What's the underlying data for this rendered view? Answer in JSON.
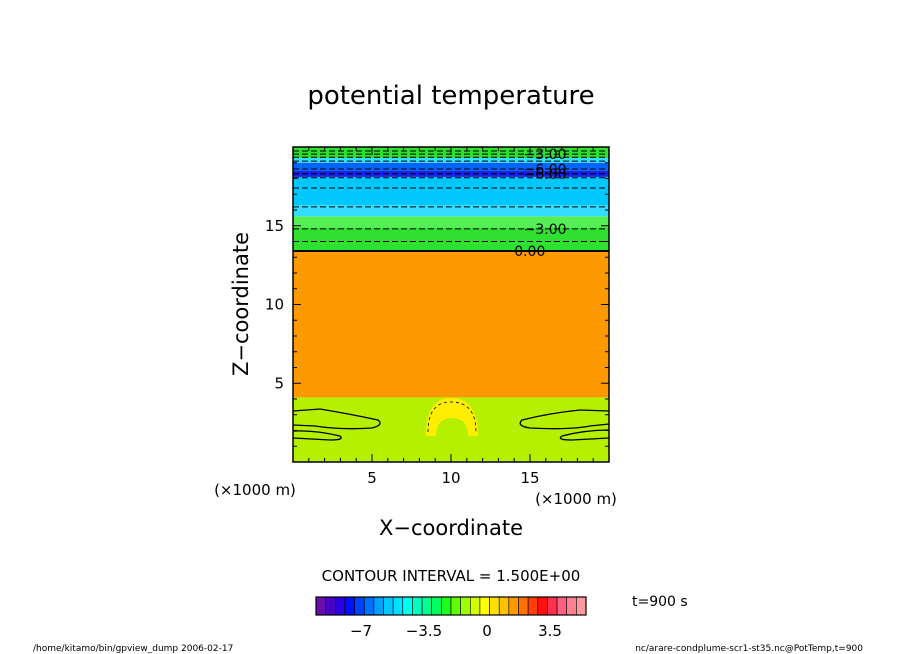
{
  "chart_data": {
    "type": "heatmap",
    "title": "potential temperature",
    "xlabel": "X−coordinate",
    "ylabel": "Z−coordinate",
    "x_unit": "(×1000 m)",
    "z_unit": "(×1000 m)",
    "xlim": [
      0,
      20
    ],
    "ylim": [
      0,
      20
    ],
    "x_ticks": [
      5,
      10,
      15
    ],
    "y_ticks": [
      5,
      10,
      15
    ],
    "x_tick_labels": [
      "5",
      "10",
      "15"
    ],
    "y_tick_labels": [
      "5",
      "10",
      "15"
    ],
    "contour_interval_text": "CONTOUR INTERVAL = 1.500E+00",
    "time_label": "t=900 s",
    "colors": {
      "orange": "#ff9900",
      "yellowgreen": "#b5f000",
      "green": "#30e030",
      "lightgreen": "#55ee55",
      "cyan": "#00c8ff",
      "lightblue": "#33ddff",
      "blue": "#0066ff",
      "darkblue": "#1a22ee",
      "yellow": "#ffee00"
    },
    "bands": [
      {
        "z0": 0.0,
        "z1": 4.1,
        "color": "yellowgreen"
      },
      {
        "z0": 4.1,
        "z1": 13.4,
        "color": "orange"
      },
      {
        "z0": 13.4,
        "z1": 13.9,
        "color": "green"
      },
      {
        "z0": 13.9,
        "z1": 14.9,
        "color": "green"
      },
      {
        "z0": 14.9,
        "z1": 15.6,
        "color": "lightgreen"
      },
      {
        "z0": 15.6,
        "z1": 16.3,
        "color": "lightblue"
      },
      {
        "z0": 16.3,
        "z1": 17.4,
        "color": "cyan"
      },
      {
        "z0": 17.4,
        "z1": 18.1,
        "color": "cyan"
      },
      {
        "z0": 18.1,
        "z1": 18.5,
        "color": "darkblue"
      },
      {
        "z0": 18.5,
        "z1": 19.0,
        "color": "blue"
      },
      {
        "z0": 19.0,
        "z1": 19.3,
        "color": "lightblue"
      },
      {
        "z0": 19.3,
        "z1": 20.0,
        "color": "green"
      }
    ],
    "contour_lines": [
      {
        "z": 13.4,
        "style": "solid",
        "label": "0.00",
        "label_x": 14.0
      },
      {
        "z": 14.0,
        "style": "dashed"
      },
      {
        "z": 14.8,
        "style": "dashed",
        "label": "−3.00",
        "label_x": 14.6
      },
      {
        "z": 16.2,
        "style": "dashed"
      },
      {
        "z": 17.4,
        "style": "dashed"
      },
      {
        "z": 18.05,
        "style": "dashed"
      },
      {
        "z": 18.3,
        "style": "dashed",
        "label": "−6.00",
        "label_x": 14.6
      },
      {
        "z": 18.6,
        "style": "dashed",
        "label": "−6.00",
        "label_x": 14.6
      },
      {
        "z": 19.1,
        "style": "dashed"
      },
      {
        "z": 19.35,
        "style": "dashed"
      },
      {
        "z": 19.55,
        "style": "dashed",
        "label": "−3.00",
        "label_x": 14.6
      },
      {
        "z": 19.75,
        "style": "dashed"
      }
    ],
    "colorbar": {
      "colors": [
        "#6a0dad",
        "#4b00c8",
        "#2a00e0",
        "#0010ff",
        "#0040ff",
        "#0070ff",
        "#00a0ff",
        "#00c8ff",
        "#00e0ff",
        "#00ffee",
        "#00ffc0",
        "#00ff90",
        "#00ff60",
        "#20ff20",
        "#60ff00",
        "#a0ff00",
        "#d0ff00",
        "#ffff00",
        "#ffe000",
        "#ffc000",
        "#ff9900",
        "#ff7000",
        "#ff4000",
        "#ff1010",
        "#ff3050",
        "#ff6080",
        "#ff8090",
        "#ff9aa0"
      ],
      "vmin": -9.5,
      "vmax": 5.5,
      "tick_values": [
        -7,
        -3.5,
        0,
        3.5
      ],
      "tick_labels": [
        "−7",
        "−3.5",
        "0",
        "3.5"
      ]
    },
    "footer_left": "/home/kitamo/bin/gpview_dump  2006-02-17",
    "footer_right": "nc/arare-condplume-scr1-st35.nc@PotTemp,t=900"
  }
}
